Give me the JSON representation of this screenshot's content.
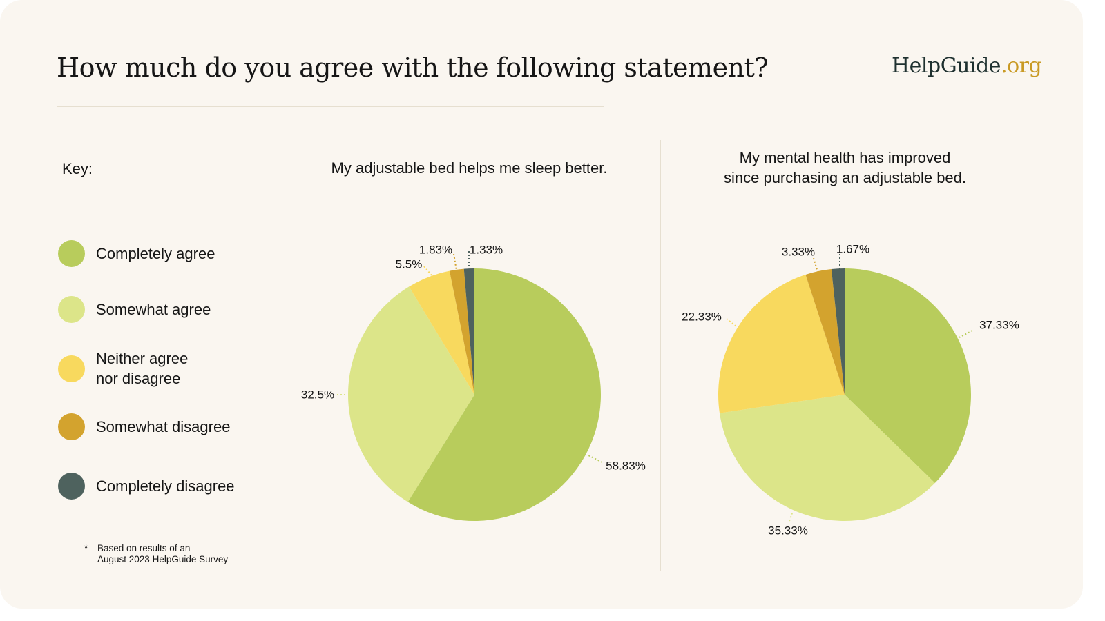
{
  "header": {
    "title": "How much do you agree with the following statement?",
    "logo_main": "HelpGuide",
    "logo_tld": ".org"
  },
  "key": {
    "heading": "Key:",
    "items": [
      {
        "label": "Completely agree",
        "color": "#B8CC5C"
      },
      {
        "label": "Somewhat agree",
        "color": "#DCE589"
      },
      {
        "label": "Neither agree\nnor disagree",
        "color": "#F8D95E"
      },
      {
        "label": "Somewhat disagree",
        "color": "#D3A32E"
      },
      {
        "label": "Completely disagree",
        "color": "#4E625E"
      }
    ]
  },
  "footnote": {
    "marker": "*",
    "line1": "Based on results of an",
    "line2": "August 2023 HelpGuide Survey"
  },
  "colors": {
    "background": "#FAF6F0",
    "divider": "#E6DFD0",
    "logo_main": "#1F3130",
    "logo_accent": "#C99A24"
  },
  "chart_data": [
    {
      "type": "pie",
      "title": "My adjustable bed helps me sleep better.",
      "categories": [
        "Completely agree",
        "Somewhat agree",
        "Neither agree nor disagree",
        "Somewhat disagree",
        "Completely disagree"
      ],
      "values": [
        58.83,
        32.5,
        5.5,
        1.83,
        1.33
      ],
      "labels": [
        "58.83%",
        "32.5%",
        "5.5%",
        "1.83%",
        "1.33%"
      ],
      "start": "12 o'clock",
      "direction": "clockwise",
      "legend": "left"
    },
    {
      "type": "pie",
      "title": "My mental health has improved\nsince purchasing an adjustable bed.",
      "title_line1": "My mental health has improved",
      "title_line2": "since purchasing an adjustable bed.",
      "categories": [
        "Completely agree",
        "Somewhat agree",
        "Neither agree nor disagree",
        "Somewhat disagree",
        "Completely disagree"
      ],
      "values": [
        37.33,
        35.33,
        22.33,
        3.33,
        1.67
      ],
      "labels": [
        "37.33%",
        "35.33%",
        "22.33%",
        "3.33%",
        "1.67%"
      ],
      "start": "12 o'clock",
      "direction": "clockwise",
      "legend": "left"
    }
  ]
}
